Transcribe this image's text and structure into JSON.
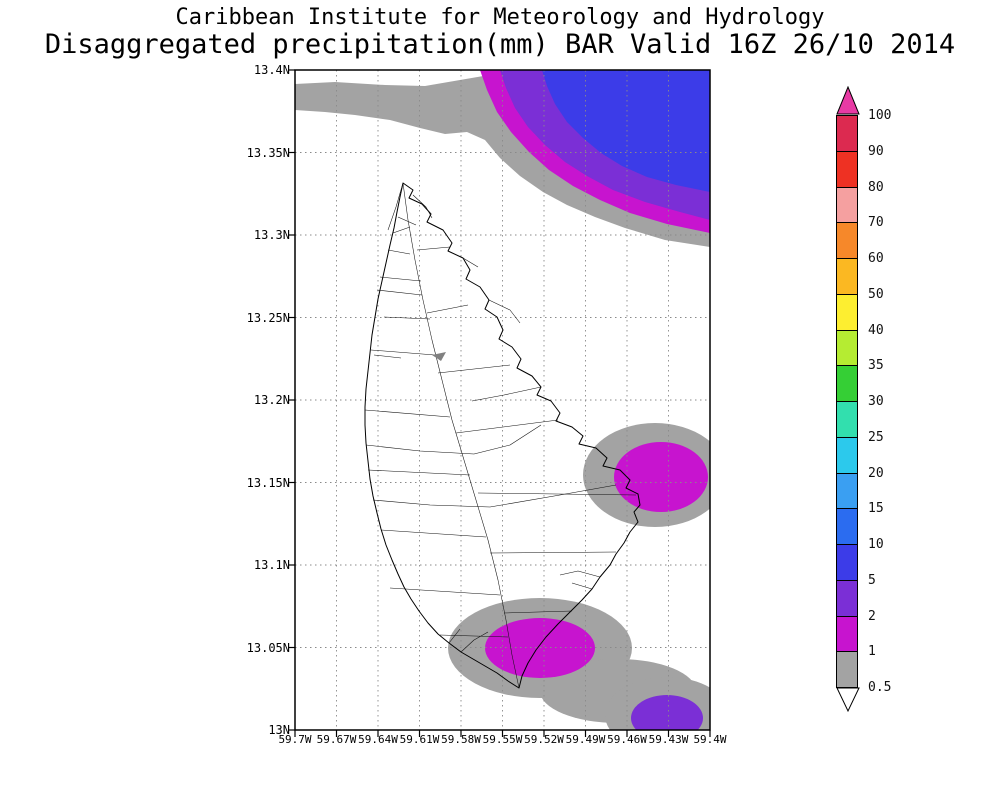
{
  "header": {
    "line1": "Caribbean Institute for Meteorology and Hydrology",
    "line2": "Disaggregated precipitation(mm) BAR Valid 16Z 26/10 2014"
  },
  "axes": {
    "lat": [
      "13.4N",
      "13.35N",
      "13.3N",
      "13.25N",
      "13.2N",
      "13.15N",
      "13.1N",
      "13.05N",
      "13N"
    ],
    "lon": [
      "59.7W",
      "59.67W",
      "59.64W",
      "59.61W",
      "59.58W",
      "59.55W",
      "59.52W",
      "59.49W",
      "59.46W",
      "59.43W",
      "59.4W"
    ]
  },
  "colorbar": {
    "labels": [
      "100",
      "90",
      "80",
      "70",
      "60",
      "50",
      "40",
      "35",
      "30",
      "25",
      "20",
      "15",
      "10",
      "5",
      "2",
      "1",
      "0.5"
    ],
    "segment_colors": [
      "#dc2a50",
      "#ee3123",
      "#f5a0a0",
      "#f6882a",
      "#fbb822",
      "#fdee30",
      "#b5ec32",
      "#35cf35",
      "#32dfae",
      "#2cc9ec",
      "#3a9ff2",
      "#2b6cf0",
      "#3c3ce8",
      "#7b2fd6",
      "#c714cf",
      "#a3a3a3"
    ],
    "above_max_color": "#e83aa4",
    "below_min_color": "#ffffff"
  },
  "palette": {
    "gray": "#a3a3a3",
    "magenta": "#c714cf",
    "purple": "#7b2fd6",
    "blue": "#3c3ce8",
    "above_max": "#e83aa4",
    "below_min": "#ffffff"
  },
  "chart_data": {
    "type": "heatmap",
    "variant": "filled-contour precipitation map (GrADS style)",
    "institution": "Caribbean Institute for Meteorology and Hydrology",
    "title": "Disaggregated precipitation(mm) BAR Valid 16Z 26/10 2014",
    "region": "Barbados",
    "units": "mm",
    "valid_time": "16Z 26/10 2014",
    "lat_ticks": [
      "13.4N",
      "13.35N",
      "13.3N",
      "13.25N",
      "13.2N",
      "13.15N",
      "13.1N",
      "13.05N",
      "13N"
    ],
    "lon_ticks": [
      "59.7W",
      "59.67W",
      "59.64W",
      "59.61W",
      "59.58W",
      "59.55W",
      "59.52W",
      "59.49W",
      "59.46W",
      "59.43W",
      "59.4W"
    ],
    "colorbar_levels_mm": [
      0.5,
      1,
      2,
      5,
      10,
      15,
      20,
      25,
      30,
      35,
      40,
      50,
      60,
      70,
      80,
      90,
      100
    ],
    "grid": "dotted gray gridlines at each labeled tick",
    "legend_position": "right vertical colorbar with arrow caps (above 100 pink-magenta, below 0.5 white)",
    "precip_features": [
      {
        "area": "northern edge of domain, north of ~13.37N",
        "values": "east-west band increasing northeastward: gray 0.5-1 mm, magenta 1-2 mm, purple 2-5 mm, blue 5-10 mm core in northeast corner"
      },
      {
        "area": "east coast cell near 13.15N 59.44W",
        "values": "magenta 1-2 mm core with gray 0.5-1 mm ring, clipped by right edge of plot"
      },
      {
        "area": "south coast cell near 13.05N 59.53W",
        "values": "magenta 1-2 mm core with gray 0.5-1 mm ring over the southern tip of the island"
      },
      {
        "area": "southeast corner cell near 13.0N 59.44W",
        "values": "purple 2-5 mm core with gray 0.5-1 mm ring, clipped by bottom edge"
      },
      {
        "area": "island interior and remaining domain",
        "values": "white, below 0.5 mm"
      }
    ]
  }
}
